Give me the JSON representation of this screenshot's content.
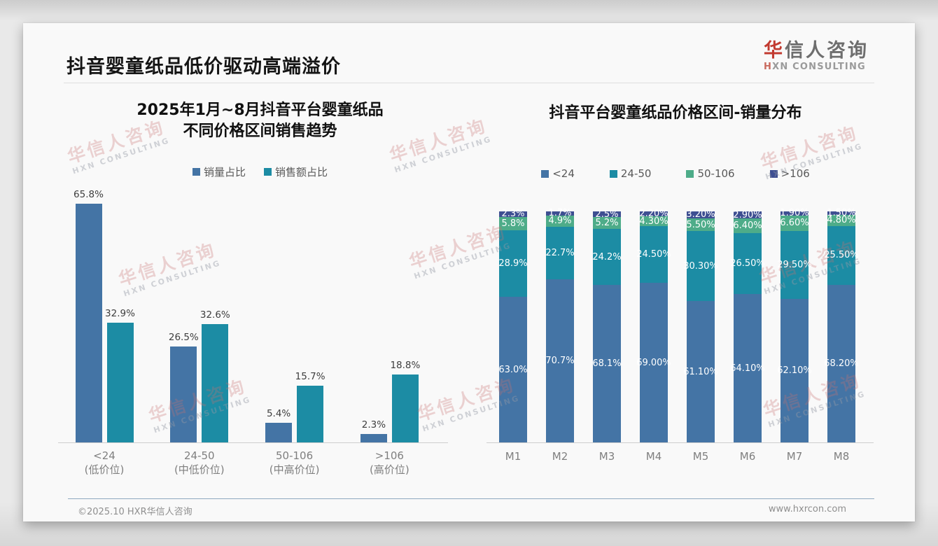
{
  "page": {
    "title": "抖音婴童纸品低价驱动高端溢价",
    "logo": {
      "cn_first": "华",
      "cn_rest": "信人咨询",
      "en_first": "H",
      "en_rest": "XN CONSULTING"
    },
    "watermark": {
      "line1": "华信人咨询",
      "line2": "HXN CONSULTING"
    },
    "footer": {
      "copyright": "©2025.10 HXR华信人咨询",
      "website": "www.hxrcon.com"
    }
  },
  "colors": {
    "blue": "#4474a5",
    "teal": "#1c8ca4",
    "green": "#4eac89",
    "navy": "#3e4f92",
    "accent_red": "#c23a30"
  },
  "chart_data": [
    {
      "type": "bar",
      "title": "2025年1月~8月抖音平台婴童纸品不同价格区间销售趋势",
      "title_lines": [
        "2025年1月~8月抖音平台婴童纸品",
        "不同价格区间销售趋势"
      ],
      "legend_position": "top",
      "grid": false,
      "ylim": [
        0,
        70
      ],
      "categories": [
        {
          "range": "<24",
          "tier": "(低价位)"
        },
        {
          "range": "24-50",
          "tier": "(中低价位)"
        },
        {
          "range": "50-106",
          "tier": "(中高价位)"
        },
        {
          "range": ">106",
          "tier": "(高价位)"
        }
      ],
      "series": [
        {
          "name": "销量占比",
          "color": "#4474a5",
          "values": [
            65.8,
            26.5,
            5.4,
            2.3
          ],
          "labels": [
            "65.8%",
            "26.5%",
            "5.4%",
            "2.3%"
          ]
        },
        {
          "name": "销售额占比",
          "color": "#1c8ca4",
          "values": [
            32.9,
            32.6,
            15.7,
            18.8
          ],
          "labels": [
            "32.9%",
            "32.6%",
            "15.7%",
            "18.8%"
          ]
        }
      ]
    },
    {
      "type": "stacked-bar",
      "title": "抖音平台婴童纸品价格区间-销量分布",
      "legend_position": "top",
      "grid": false,
      "ylim": [
        0,
        100
      ],
      "categories": [
        "M1",
        "M2",
        "M3",
        "M4",
        "M5",
        "M6",
        "M7",
        "M8"
      ],
      "series": [
        {
          "name": "<24",
          "color": "#4474a5",
          "values": [
            63.0,
            70.7,
            68.1,
            69.0,
            61.1,
            64.1,
            62.1,
            68.2
          ],
          "labels": [
            "63.0%",
            "70.7%",
            "68.1%",
            "69.00%",
            "61.10%",
            "64.10%",
            "62.10%",
            "68.20%"
          ]
        },
        {
          "name": "24-50",
          "color": "#1c8ca4",
          "values": [
            28.9,
            22.7,
            24.2,
            24.5,
            30.3,
            26.5,
            29.5,
            25.5
          ],
          "labels": [
            "28.9%",
            "22.7%",
            "24.2%",
            "24.50%",
            "30.30%",
            "26.50%",
            "29.50%",
            "25.50%"
          ]
        },
        {
          "name": "50-106",
          "color": "#4eac89",
          "values": [
            5.8,
            4.9,
            5.2,
            4.3,
            5.5,
            6.4,
            6.6,
            4.8
          ],
          "labels": [
            "5.8%",
            "4.9%",
            "5.2%",
            "4.30%",
            "5.50%",
            "6.40%",
            "6.60%",
            "4.80%"
          ]
        },
        {
          "name": ">106",
          "color": "#3e4f92",
          "values": [
            2.3,
            1.7,
            2.5,
            2.2,
            3.2,
            2.9,
            1.9,
            1.5
          ],
          "labels": [
            "2.3%",
            "1.7%",
            "2.5%",
            "2.20%",
            "3.20%",
            "2.90%",
            "1.90%",
            "1.50%"
          ]
        }
      ]
    }
  ]
}
